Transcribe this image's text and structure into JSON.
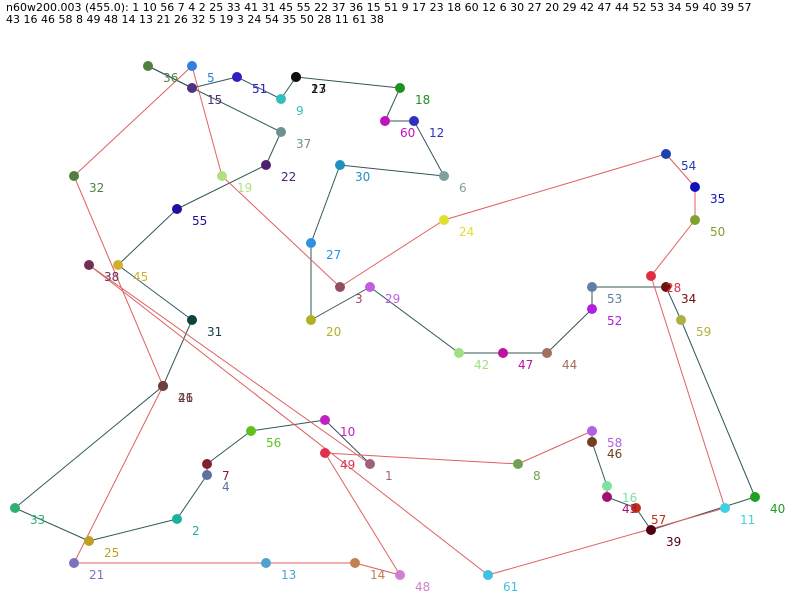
{
  "header": {
    "line1": "n60w200.003 (455.0): 1 10 56 7 4 2 25 33 41 31 45 55 22 37 36 15 51 9 17 23 18 60 12 6 30 27 20 29 42 47 44 52 53 34 59 40 39 57",
    "line2": "43 16 46 58 8 49 48 14 13 21 26 32 5 19 3 24 54 35 50 28 11 61 38"
  },
  "nodes": [
    "1",
    "10",
    "56",
    "7",
    "4",
    "2",
    "25",
    "33",
    "41",
    "31",
    "45",
    "55",
    "22",
    "37",
    "36",
    "15",
    "51",
    "9",
    "17",
    "23",
    "18",
    "60",
    "12",
    "6",
    "30",
    "27",
    "20",
    "29",
    "42",
    "47",
    "44",
    "52",
    "53",
    "34",
    "59",
    "40",
    "39",
    "57",
    "43",
    "16",
    "46",
    "58",
    "8",
    "49",
    "48",
    "14",
    "13",
    "21",
    "26",
    "32",
    "5",
    "19",
    "3",
    "24",
    "54",
    "35",
    "50",
    "28",
    "11",
    "61",
    "38"
  ]
}
